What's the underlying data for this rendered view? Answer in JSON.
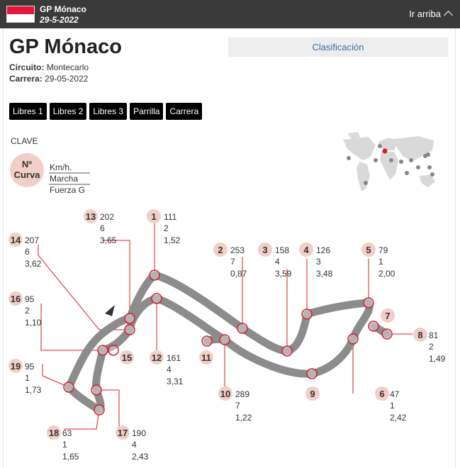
{
  "topbar": {
    "gp_name": "GP Mónaco",
    "date": "29-5-2022",
    "go_top": "Ir arriba"
  },
  "header": {
    "title": "GP Mónaco",
    "circuit_label": "Circuito:",
    "circuit_value": "Montecarlo",
    "race_label": "Carrera:",
    "race_value": "29-05-2022",
    "classification": "Clasificación"
  },
  "tabs": [
    "Libres 1",
    "Libres 2",
    "Libres 3",
    "Parrilla",
    "Carrera"
  ],
  "legend": {
    "title": "CLAVE",
    "badge_line1": "Nº",
    "badge_line2": "Curva",
    "speed": "Km/h.",
    "gear": "Marcha",
    "gforce": "Fuerza G"
  },
  "colors": {
    "topbar": "#3a3a3a",
    "badge": "#f2cfc6",
    "track": "#8c8c8c",
    "marker": "#d81e2c"
  },
  "corners": [
    {
      "n": "1",
      "speed": "111",
      "gear": "2",
      "g": "1,52"
    },
    {
      "n": "2",
      "speed": "253",
      "gear": "7",
      "g": "0,87"
    },
    {
      "n": "3",
      "speed": "158",
      "gear": "4",
      "g": "3,59"
    },
    {
      "n": "4",
      "speed": "126",
      "gear": "3",
      "g": "3,48"
    },
    {
      "n": "5",
      "speed": "79",
      "gear": "1",
      "g": "2,00"
    },
    {
      "n": "6",
      "speed": "47",
      "gear": "1",
      "g": "2,42"
    },
    {
      "n": "7",
      "speed": "",
      "gear": "",
      "g": ""
    },
    {
      "n": "8",
      "speed": "81",
      "gear": "2",
      "g": "1,49"
    },
    {
      "n": "9",
      "speed": "",
      "gear": "",
      "g": ""
    },
    {
      "n": "10",
      "speed": "289",
      "gear": "7",
      "g": "1,22"
    },
    {
      "n": "11",
      "speed": "",
      "gear": "",
      "g": ""
    },
    {
      "n": "12",
      "speed": "161",
      "gear": "4",
      "g": "3,31"
    },
    {
      "n": "13",
      "speed": "202",
      "gear": "6",
      "g": "3,65"
    },
    {
      "n": "14",
      "speed": "207",
      "gear": "6",
      "g": "3,62"
    },
    {
      "n": "15",
      "speed": "",
      "gear": "",
      "g": ""
    },
    {
      "n": "16",
      "speed": "95",
      "gear": "2",
      "g": "1,10"
    },
    {
      "n": "17",
      "speed": "190",
      "gear": "4",
      "g": "2,43"
    },
    {
      "n": "18",
      "speed": "63",
      "gear": "1",
      "g": "1,65"
    },
    {
      "n": "19",
      "speed": "95",
      "gear": "1",
      "g": "1,73"
    }
  ]
}
